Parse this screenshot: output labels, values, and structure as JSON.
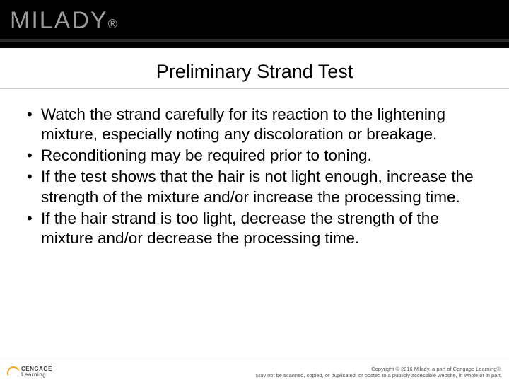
{
  "brand": "MILADY",
  "title": "Preliminary Strand Test",
  "bullets": [
    "Watch the strand carefully for its reaction to the lightening mixture, especially noting any discoloration or breakage.",
    "Reconditioning may be required prior to toning.",
    "If the test shows that the hair is not light enough, increase the strength of the mixture and/or increase the processing time.",
    "If the hair strand is too light, decrease the strength of the mixture and/or decrease the processing time."
  ],
  "footer": {
    "publisher_line1": "CENGAGE",
    "publisher_line2": "Learning",
    "copyright_line1": "Copyright © 2016 Milady, a part of Cengage Learning®.",
    "copyright_line2": "May not be scanned, copied, or duplicated, or posted to a publicly accessible website, in whole or in part."
  },
  "colors": {
    "header_bg": "#000000",
    "brand_text": "#9d9d9d",
    "body_text": "#000000",
    "rule": "#c9c9c9",
    "accent": "#f5a623"
  },
  "typography": {
    "title_fontsize": 27,
    "body_fontsize": 22.5,
    "brand_fontsize": 34
  }
}
